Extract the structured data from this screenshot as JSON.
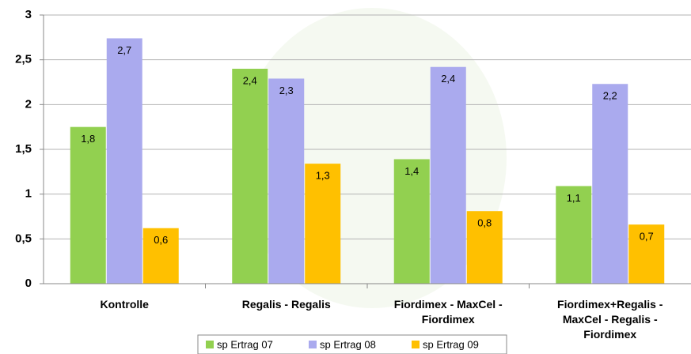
{
  "chart_data": {
    "type": "bar",
    "categories": [
      "Kontrolle",
      "Regalis - Regalis",
      "Fiordimex - MaxCel - Fiordimex",
      "Fiordimex+Regalis - MaxCel - Regalis - Fiordimex"
    ],
    "series": [
      {
        "name": "sp Ertrag 07",
        "color": "#92d050",
        "values": [
          1.75,
          2.4,
          1.39,
          1.09
        ],
        "value_labels": [
          "1,8",
          "2,4",
          "1,4",
          "1,1"
        ]
      },
      {
        "name": "sp Ertrag 08",
        "color": "#aaaaee",
        "values": [
          2.74,
          2.29,
          2.42,
          2.23
        ],
        "value_labels": [
          "2,7",
          "2,3",
          "2,4",
          "2,2"
        ]
      },
      {
        "name": "sp Ertrag 09",
        "color": "#ffc000",
        "values": [
          0.62,
          1.34,
          0.81,
          0.66
        ],
        "value_labels": [
          "0,6",
          "1,3",
          "0,8",
          "0,7"
        ]
      }
    ],
    "ylim": [
      0,
      3
    ],
    "yticks": [
      0,
      {
        "value": 0.5,
        "label": "0,5"
      },
      1,
      {
        "value": 1.5,
        "label": "1,5"
      },
      2,
      {
        "value": 2.5,
        "label": "2,5"
      },
      3
    ],
    "grid": true,
    "legend": "bottom"
  }
}
